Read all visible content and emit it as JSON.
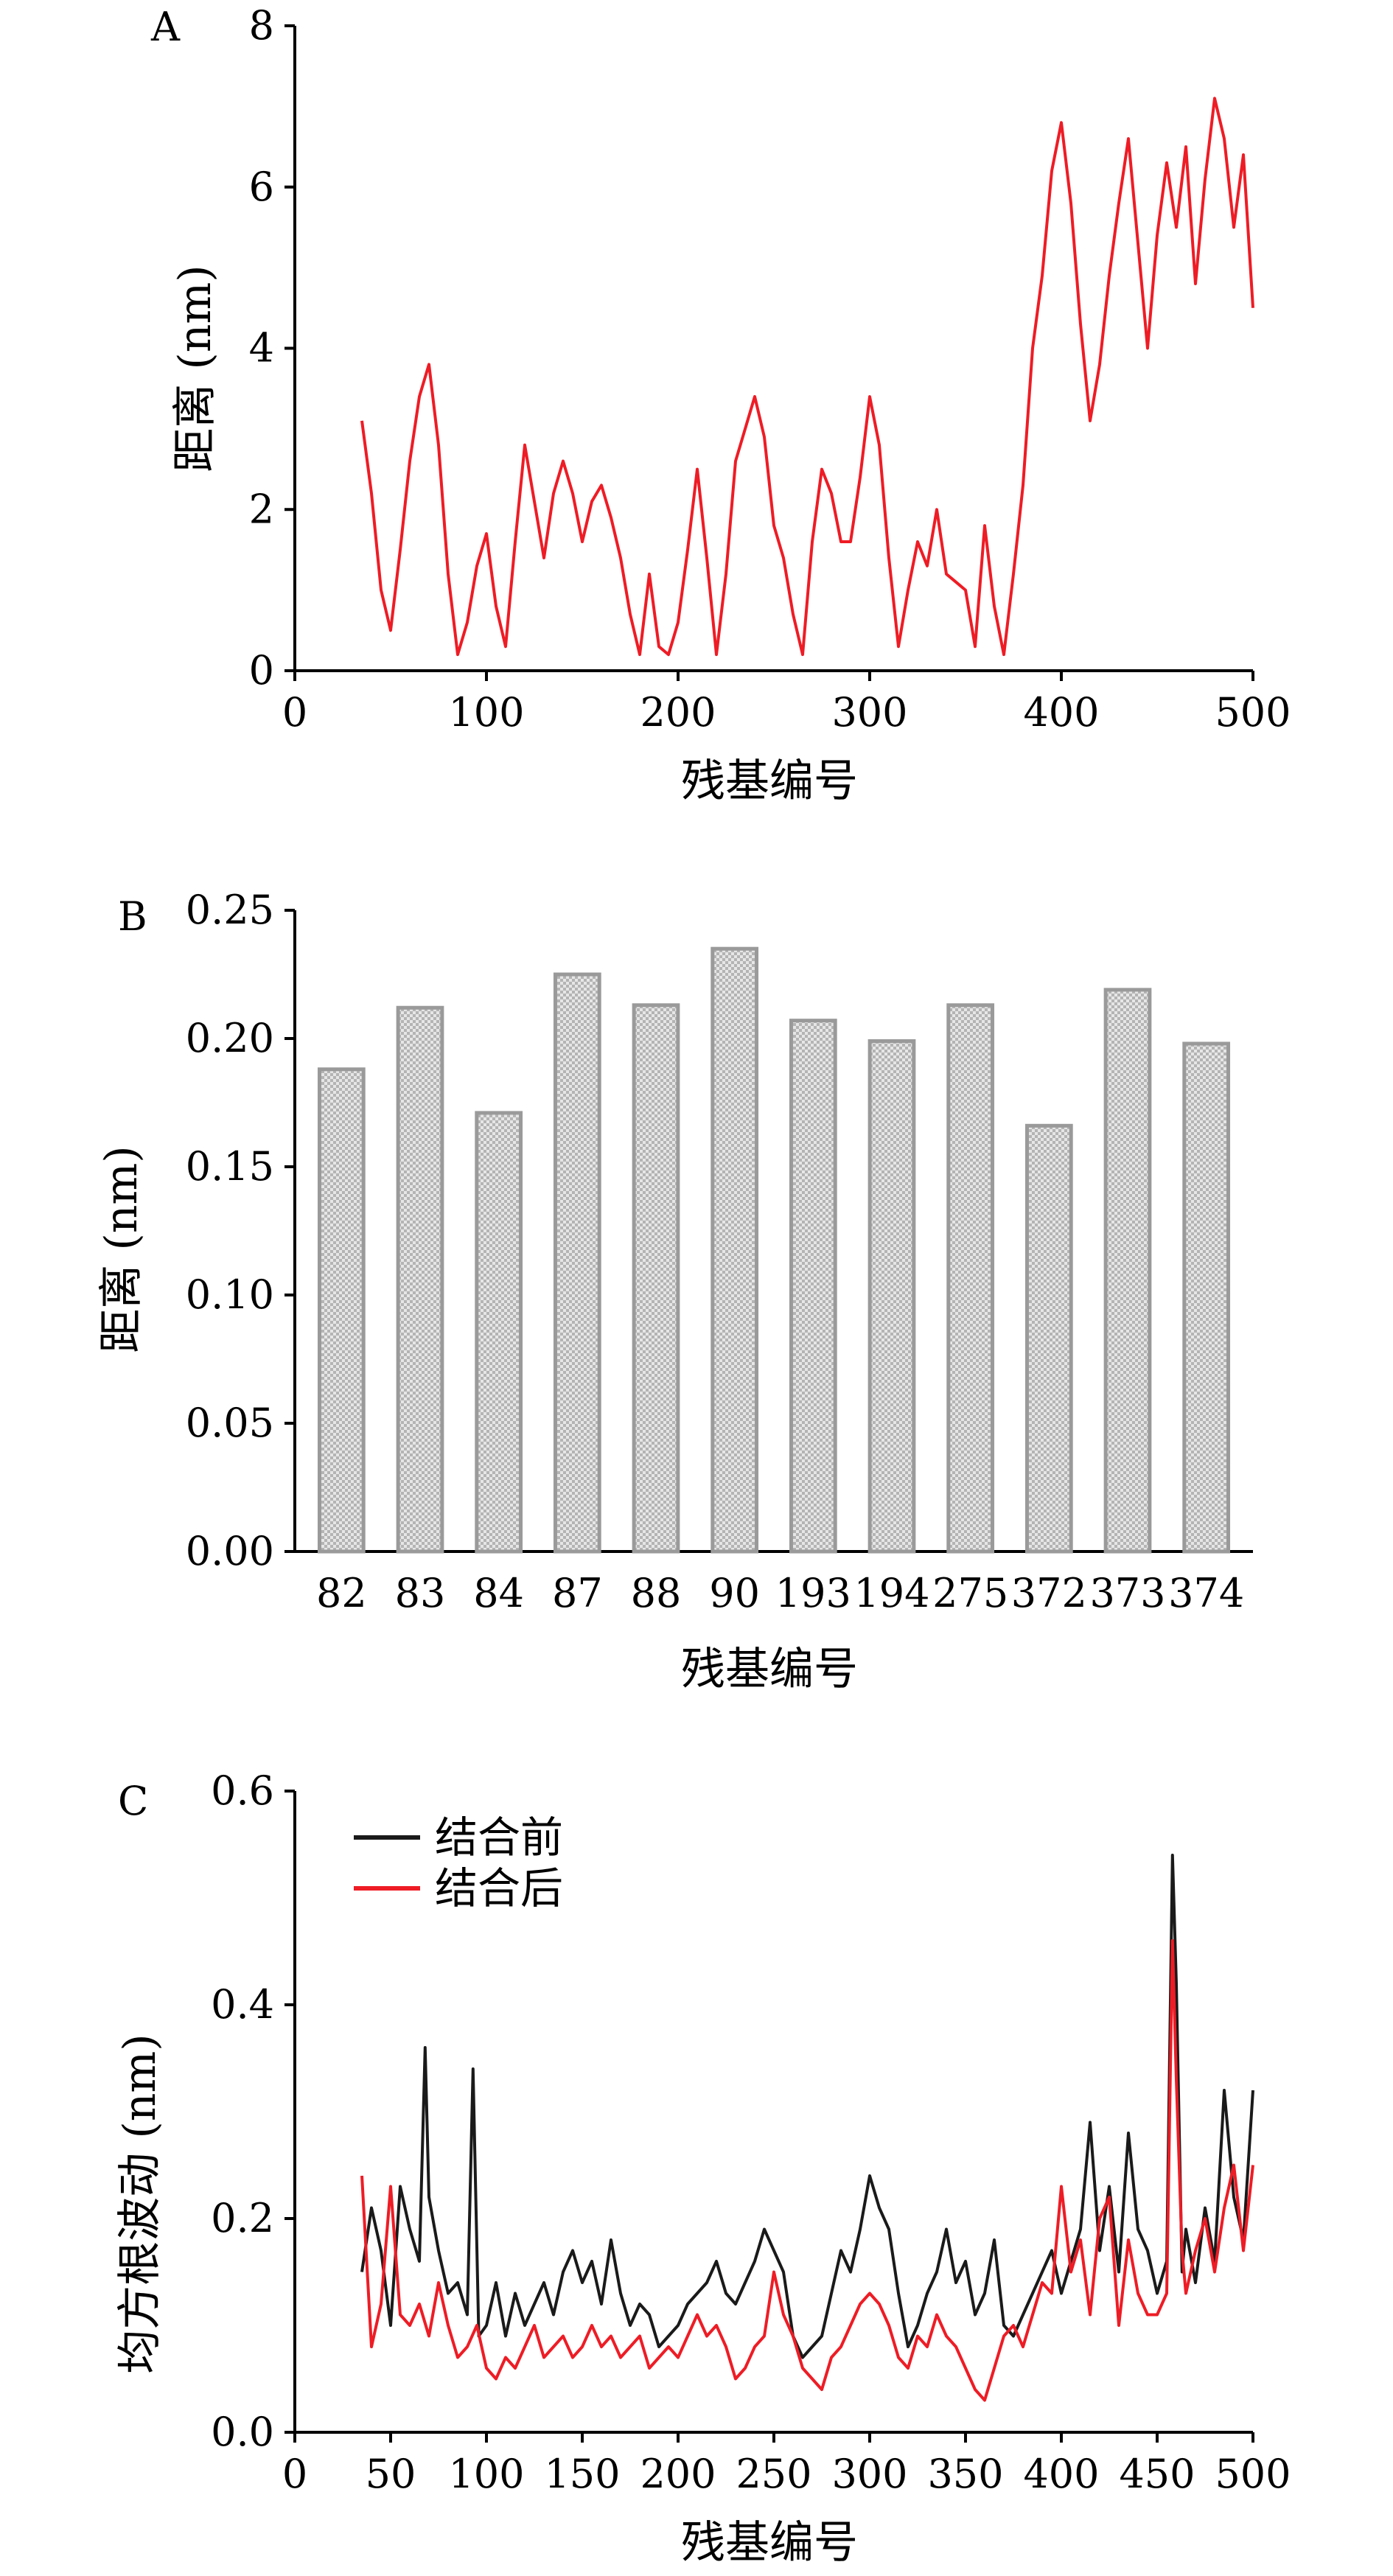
{
  "chart_data": [
    {
      "panel_label": "A",
      "type": "line",
      "xlabel": "残基编号",
      "ylabel": "距离 (nm)",
      "xlim": [
        0,
        500
      ],
      "ylim": [
        0,
        8
      ],
      "xticks": [
        "0",
        "100",
        "200",
        "300",
        "400",
        "500"
      ],
      "yticks": [
        "0",
        "2",
        "4",
        "6",
        "8"
      ],
      "series": [
        {
          "color": "#ee1c25",
          "x": [
            35,
            40,
            45,
            50,
            55,
            60,
            65,
            70,
            75,
            80,
            85,
            90,
            95,
            100,
            105,
            110,
            115,
            120,
            125,
            130,
            135,
            140,
            145,
            150,
            155,
            160,
            165,
            170,
            175,
            180,
            185,
            190,
            195,
            200,
            205,
            210,
            215,
            220,
            225,
            230,
            235,
            240,
            245,
            250,
            255,
            260,
            265,
            270,
            275,
            280,
            285,
            290,
            295,
            300,
            305,
            310,
            315,
            320,
            325,
            330,
            335,
            340,
            345,
            350,
            355,
            360,
            365,
            370,
            375,
            380,
            385,
            390,
            395,
            400,
            405,
            410,
            415,
            420,
            425,
            430,
            435,
            440,
            445,
            450,
            455,
            460,
            465,
            470,
            475,
            480,
            485,
            490,
            495,
            500
          ],
          "y": [
            3.1,
            2.2,
            1.0,
            0.5,
            1.5,
            2.6,
            3.4,
            3.8,
            2.8,
            1.2,
            0.2,
            0.6,
            1.3,
            1.7,
            0.8,
            0.3,
            1.6,
            2.8,
            2.1,
            1.4,
            2.2,
            2.6,
            2.2,
            1.6,
            2.1,
            2.3,
            1.9,
            1.4,
            0.7,
            0.2,
            1.2,
            0.3,
            0.2,
            0.6,
            1.5,
            2.5,
            1.4,
            0.2,
            1.2,
            2.6,
            3.0,
            3.4,
            2.9,
            1.8,
            1.4,
            0.7,
            0.2,
            1.6,
            2.5,
            2.2,
            1.6,
            1.6,
            2.4,
            3.4,
            2.8,
            1.4,
            0.3,
            1.0,
            1.6,
            1.3,
            2.0,
            1.2,
            1.1,
            1.0,
            0.3,
            1.8,
            0.8,
            0.2,
            1.2,
            2.3,
            4.0,
            4.9,
            6.2,
            6.8,
            5.8,
            4.3,
            3.1,
            3.8,
            4.9,
            5.8,
            6.6,
            5.3,
            4.0,
            5.4,
            6.3,
            5.5,
            6.5,
            4.8,
            6.1,
            7.1,
            6.6,
            5.5,
            6.4,
            4.5
          ]
        }
      ]
    },
    {
      "panel_label": "B",
      "type": "bar",
      "xlabel": "残基编号",
      "ylabel": "距离 (nm)",
      "ylim": [
        0,
        0.25
      ],
      "yticks": [
        "0.00",
        "0.05",
        "0.10",
        "0.15",
        "0.20",
        "0.25"
      ],
      "categories": [
        "82",
        "83",
        "84",
        "87",
        "88",
        "90",
        "193",
        "194",
        "275",
        "372",
        "373",
        "374"
      ],
      "values": [
        0.188,
        0.212,
        0.171,
        0.225,
        0.213,
        0.235,
        0.207,
        0.199,
        0.213,
        0.166,
        0.219,
        0.198
      ],
      "bar_color": "#c8c8c8",
      "bar_edge_color": "#9a9a9a"
    },
    {
      "panel_label": "C",
      "type": "line",
      "xlabel": "残基编号",
      "ylabel": "均方根波动 (nm)",
      "xlim": [
        0,
        500
      ],
      "ylim": [
        0.0,
        0.6
      ],
      "xticks": [
        "0",
        "50",
        "100",
        "150",
        "200",
        "250",
        "300",
        "350",
        "400",
        "450",
        "500"
      ],
      "yticks": [
        "0.0",
        "0.2",
        "0.4",
        "0.6"
      ],
      "legend_position": "top-left",
      "series": [
        {
          "name": "结合前",
          "color": "#1a1a1a",
          "x": [
            35,
            40,
            45,
            50,
            55,
            60,
            65,
            68,
            70,
            75,
            80,
            85,
            90,
            93,
            96,
            100,
            105,
            110,
            115,
            120,
            125,
            130,
            135,
            140,
            145,
            150,
            155,
            160,
            165,
            170,
            175,
            180,
            185,
            190,
            195,
            200,
            205,
            210,
            215,
            220,
            225,
            230,
            235,
            240,
            245,
            250,
            255,
            260,
            265,
            270,
            275,
            280,
            285,
            290,
            295,
            300,
            305,
            310,
            315,
            320,
            325,
            330,
            335,
            340,
            345,
            350,
            355,
            360,
            365,
            370,
            375,
            380,
            385,
            390,
            395,
            400,
            405,
            410,
            415,
            420,
            425,
            430,
            435,
            440,
            445,
            450,
            455,
            458,
            460,
            463,
            465,
            470,
            475,
            480,
            485,
            490,
            495,
            500
          ],
          "y": [
            0.15,
            0.21,
            0.17,
            0.1,
            0.23,
            0.19,
            0.16,
            0.36,
            0.22,
            0.17,
            0.13,
            0.14,
            0.11,
            0.34,
            0.09,
            0.1,
            0.14,
            0.09,
            0.13,
            0.1,
            0.12,
            0.14,
            0.11,
            0.15,
            0.17,
            0.14,
            0.16,
            0.12,
            0.18,
            0.13,
            0.1,
            0.12,
            0.11,
            0.08,
            0.09,
            0.1,
            0.12,
            0.13,
            0.14,
            0.16,
            0.13,
            0.12,
            0.14,
            0.16,
            0.19,
            0.17,
            0.15,
            0.09,
            0.07,
            0.08,
            0.09,
            0.13,
            0.17,
            0.15,
            0.19,
            0.24,
            0.21,
            0.19,
            0.13,
            0.08,
            0.1,
            0.13,
            0.15,
            0.19,
            0.14,
            0.16,
            0.11,
            0.13,
            0.18,
            0.1,
            0.09,
            0.11,
            0.13,
            0.15,
            0.17,
            0.13,
            0.16,
            0.19,
            0.29,
            0.17,
            0.23,
            0.15,
            0.28,
            0.19,
            0.17,
            0.13,
            0.16,
            0.54,
            0.42,
            0.15,
            0.19,
            0.14,
            0.21,
            0.16,
            0.32,
            0.22,
            0.18,
            0.32
          ]
        },
        {
          "name": "结合后",
          "color": "#ee1c25",
          "x": [
            35,
            40,
            45,
            50,
            55,
            60,
            65,
            70,
            75,
            80,
            85,
            90,
            95,
            100,
            105,
            110,
            115,
            120,
            125,
            130,
            135,
            140,
            145,
            150,
            155,
            160,
            165,
            170,
            175,
            180,
            185,
            190,
            195,
            200,
            205,
            210,
            215,
            220,
            225,
            230,
            235,
            240,
            245,
            250,
            255,
            260,
            265,
            270,
            275,
            280,
            285,
            290,
            295,
            300,
            305,
            310,
            315,
            320,
            325,
            330,
            335,
            340,
            345,
            350,
            355,
            360,
            365,
            370,
            375,
            380,
            385,
            390,
            395,
            400,
            405,
            410,
            415,
            420,
            425,
            430,
            435,
            440,
            445,
            450,
            455,
            458,
            460,
            463,
            465,
            470,
            475,
            480,
            485,
            490,
            495,
            500
          ],
          "y": [
            0.24,
            0.08,
            0.12,
            0.23,
            0.11,
            0.1,
            0.12,
            0.09,
            0.14,
            0.1,
            0.07,
            0.08,
            0.1,
            0.06,
            0.05,
            0.07,
            0.06,
            0.08,
            0.1,
            0.07,
            0.08,
            0.09,
            0.07,
            0.08,
            0.1,
            0.08,
            0.09,
            0.07,
            0.08,
            0.09,
            0.06,
            0.07,
            0.08,
            0.07,
            0.09,
            0.11,
            0.09,
            0.1,
            0.08,
            0.05,
            0.06,
            0.08,
            0.09,
            0.15,
            0.11,
            0.09,
            0.06,
            0.05,
            0.04,
            0.07,
            0.08,
            0.1,
            0.12,
            0.13,
            0.12,
            0.1,
            0.07,
            0.06,
            0.09,
            0.08,
            0.11,
            0.09,
            0.08,
            0.06,
            0.04,
            0.03,
            0.06,
            0.09,
            0.1,
            0.08,
            0.11,
            0.14,
            0.13,
            0.23,
            0.15,
            0.18,
            0.11,
            0.2,
            0.22,
            0.1,
            0.18,
            0.13,
            0.11,
            0.11,
            0.13,
            0.46,
            0.33,
            0.17,
            0.13,
            0.17,
            0.2,
            0.15,
            0.21,
            0.25,
            0.17,
            0.25
          ]
        }
      ]
    }
  ]
}
